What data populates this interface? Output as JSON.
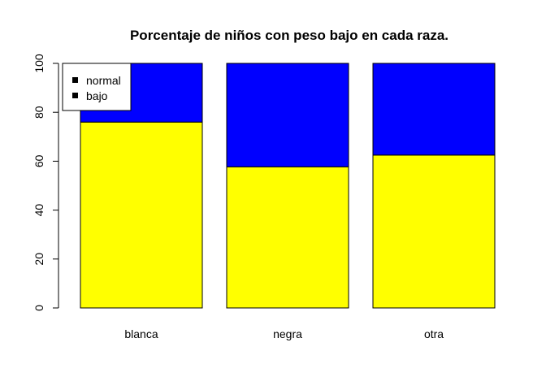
{
  "chart_data": {
    "type": "bar",
    "stacked": true,
    "title": "Porcentaje de niños con peso bajo en cada raza.",
    "xlabel": "",
    "ylabel": "",
    "categories": [
      "blanca",
      "negra",
      "otra"
    ],
    "series": [
      {
        "name": "bajo",
        "color": "#ffff00",
        "values": [
          76.0,
          57.7,
          62.5
        ]
      },
      {
        "name": "normal",
        "color": "#0000ff",
        "values": [
          24.0,
          42.3,
          37.5
        ]
      }
    ],
    "ylim": [
      0,
      100
    ],
    "yticks": [
      0,
      20,
      40,
      60,
      80,
      100
    ],
    "grid": false,
    "legend": {
      "placement": "top-left",
      "entries": [
        "normal",
        "bajo"
      ]
    }
  }
}
